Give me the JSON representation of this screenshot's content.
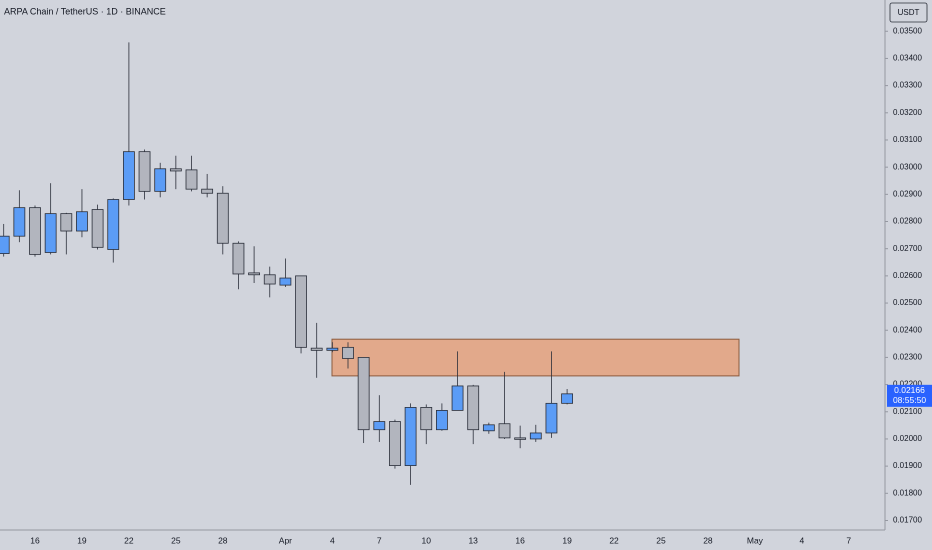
{
  "chart_data": {
    "type": "candlestick",
    "title": "ARPA Chain / TetherUS · 1D · BINANCE",
    "currency": "USDT",
    "categories": [
      null,
      null,
      "16",
      null,
      null,
      "19",
      null,
      null,
      "22",
      null,
      null,
      "25",
      null,
      null,
      "28",
      null,
      null,
      null,
      "Apr",
      null,
      null,
      "4",
      null,
      null,
      "7",
      null,
      null,
      "10",
      null,
      null,
      "13",
      null,
      null,
      "16",
      null,
      null,
      "19",
      null,
      null,
      "22",
      null,
      null,
      "25",
      null,
      null,
      "28",
      null,
      null,
      "May",
      null,
      null,
      "4",
      null,
      null,
      "7",
      null,
      null
    ],
    "open": [
      0.02682,
      0.02746,
      0.02851,
      0.02686,
      0.02829,
      0.02765,
      0.02844,
      0.02697,
      0.02881,
      0.03057,
      0.02911,
      0.02994,
      0.0299,
      0.02919,
      0.02904,
      0.0272,
      0.02611,
      0.02604,
      0.02566,
      0.026,
      0.02334,
      0.02326,
      0.02337,
      0.023,
      0.02034,
      0.02064,
      0.01902,
      0.02116,
      0.02034,
      0.02105,
      0.02195,
      0.0203,
      0.02056,
      0.02004,
      0.02,
      0.02022,
      0.02131,
      null,
      null,
      null,
      null,
      null,
      null,
      null,
      null,
      null,
      null,
      null,
      null,
      null,
      null,
      null,
      null,
      null,
      null,
      null,
      null
    ],
    "high": [
      0.02791,
      0.02915,
      0.02859,
      0.02941,
      0.02832,
      0.02919,
      0.02862,
      0.02885,
      0.03459,
      0.03065,
      0.03016,
      0.03042,
      0.03042,
      0.02975,
      0.0293,
      0.02727,
      0.02709,
      0.02634,
      0.02664,
      0.026,
      0.02427,
      0.02356,
      0.02356,
      0.023,
      0.02161,
      0.02071,
      0.02131,
      0.02127,
      0.02131,
      0.02322,
      0.02199,
      0.0206,
      0.02247,
      0.02049,
      0.02052,
      0.02322,
      0.02184,
      null,
      null,
      null,
      null,
      null,
      null,
      null,
      null,
      null,
      null,
      null,
      null,
      null,
      null,
      null,
      null,
      null,
      null,
      null,
      null
    ],
    "low": [
      0.02671,
      0.02724,
      0.02671,
      0.02679,
      0.02679,
      0.02742,
      0.02697,
      0.02649,
      0.02859,
      0.02881,
      0.02889,
      0.02919,
      0.02911,
      0.02889,
      0.02679,
      0.02551,
      0.02574,
      0.02521,
      0.02559,
      0.02315,
      0.02225,
      0.02319,
      0.02259,
      0.01985,
      0.01989,
      0.01891,
      0.01831,
      0.01981,
      0.0203,
      0.02105,
      0.01981,
      0.02019,
      0.02,
      0.01966,
      0.01989,
      0.02004,
      0.02127,
      null,
      null,
      null,
      null,
      null,
      null,
      null,
      null,
      null,
      null,
      null,
      null,
      null,
      null,
      null,
      null,
      null,
      null,
      null,
      null
    ],
    "close": [
      0.02746,
      0.02851,
      0.02679,
      0.02829,
      0.02765,
      0.02836,
      0.02705,
      0.02881,
      0.03057,
      0.02911,
      0.02994,
      0.02986,
      0.02919,
      0.02904,
      0.0272,
      0.02607,
      0.02604,
      0.0257,
      0.02592,
      0.02337,
      0.02326,
      0.02334,
      0.02296,
      0.02034,
      0.02064,
      0.01902,
      0.02116,
      0.02034,
      0.02105,
      0.02195,
      0.02034,
      0.02052,
      0.02004,
      0.02,
      0.02022,
      0.02131,
      0.02166,
      null,
      null,
      null,
      null,
      null,
      null,
      null,
      null,
      null,
      null,
      null,
      null,
      null,
      null,
      null,
      null,
      null,
      null,
      null,
      null
    ],
    "up_color": "#5b9cf6",
    "down_color": "#b2b5be",
    "outline_color": "#2a2e39",
    "ylim": [
      0.01665,
      0.03615
    ],
    "yticks": [
      {
        "value": 0.017,
        "label": "0.01700"
      },
      {
        "value": 0.018,
        "label": "0.01800"
      },
      {
        "value": 0.019,
        "label": "0.01900"
      },
      {
        "value": 0.02,
        "label": "0.02000"
      },
      {
        "value": 0.021,
        "label": "0.02100"
      },
      {
        "value": 0.022,
        "label": "0.02200"
      },
      {
        "value": 0.023,
        "label": "0.02300"
      },
      {
        "value": 0.024,
        "label": "0.02400"
      },
      {
        "value": 0.025,
        "label": "0.02500"
      },
      {
        "value": 0.026,
        "label": "0.02600"
      },
      {
        "value": 0.027,
        "label": "0.02700"
      },
      {
        "value": 0.028,
        "label": "0.02800"
      },
      {
        "value": 0.029,
        "label": "0.02900"
      },
      {
        "value": 0.03,
        "label": "0.03000"
      },
      {
        "value": 0.031,
        "label": "0.03100"
      },
      {
        "value": 0.032,
        "label": "0.03200"
      },
      {
        "value": 0.033,
        "label": "0.03300"
      },
      {
        "value": 0.034,
        "label": "0.03400"
      },
      {
        "value": 0.035,
        "label": "0.03500"
      }
    ],
    "zone": {
      "top": 0.02367,
      "bottom": 0.02232,
      "color": "#e2a98b",
      "border": "#8b5a3c"
    },
    "last_price": 0.02166,
    "countdown": "08:55:50",
    "last_price_color": "#2962ff"
  }
}
